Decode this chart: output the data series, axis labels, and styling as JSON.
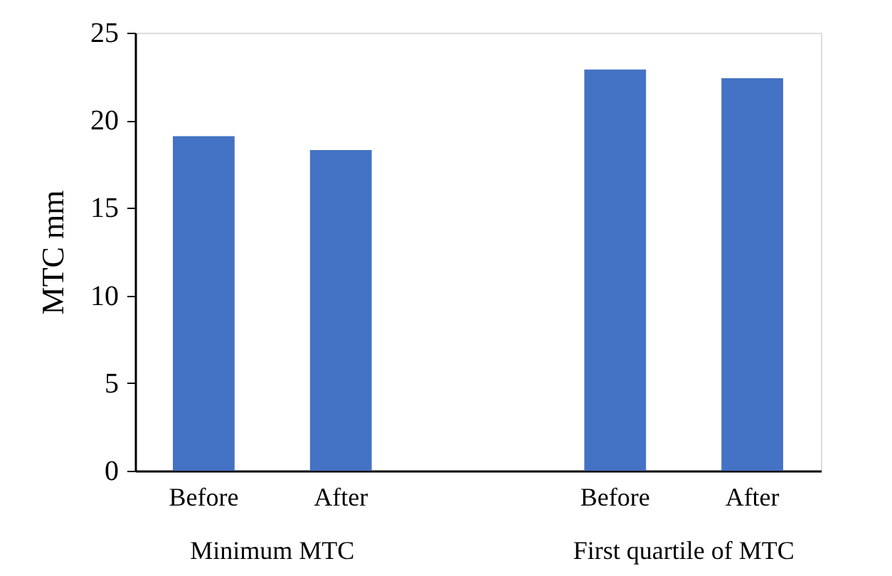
{
  "chart_data": {
    "type": "bar",
    "ylabel": "MTC mm",
    "categories": [
      "Before",
      "After",
      null,
      "Before",
      "After"
    ],
    "values": [
      19.1,
      18.3,
      null,
      22.9,
      22.4
    ],
    "color": "#4472c4",
    "ylim": [
      0,
      25
    ],
    "yticks": [
      0,
      5,
      10,
      15,
      20,
      25
    ],
    "annotations": [
      "Minimum MTC",
      "First quartile of MTC"
    ]
  }
}
